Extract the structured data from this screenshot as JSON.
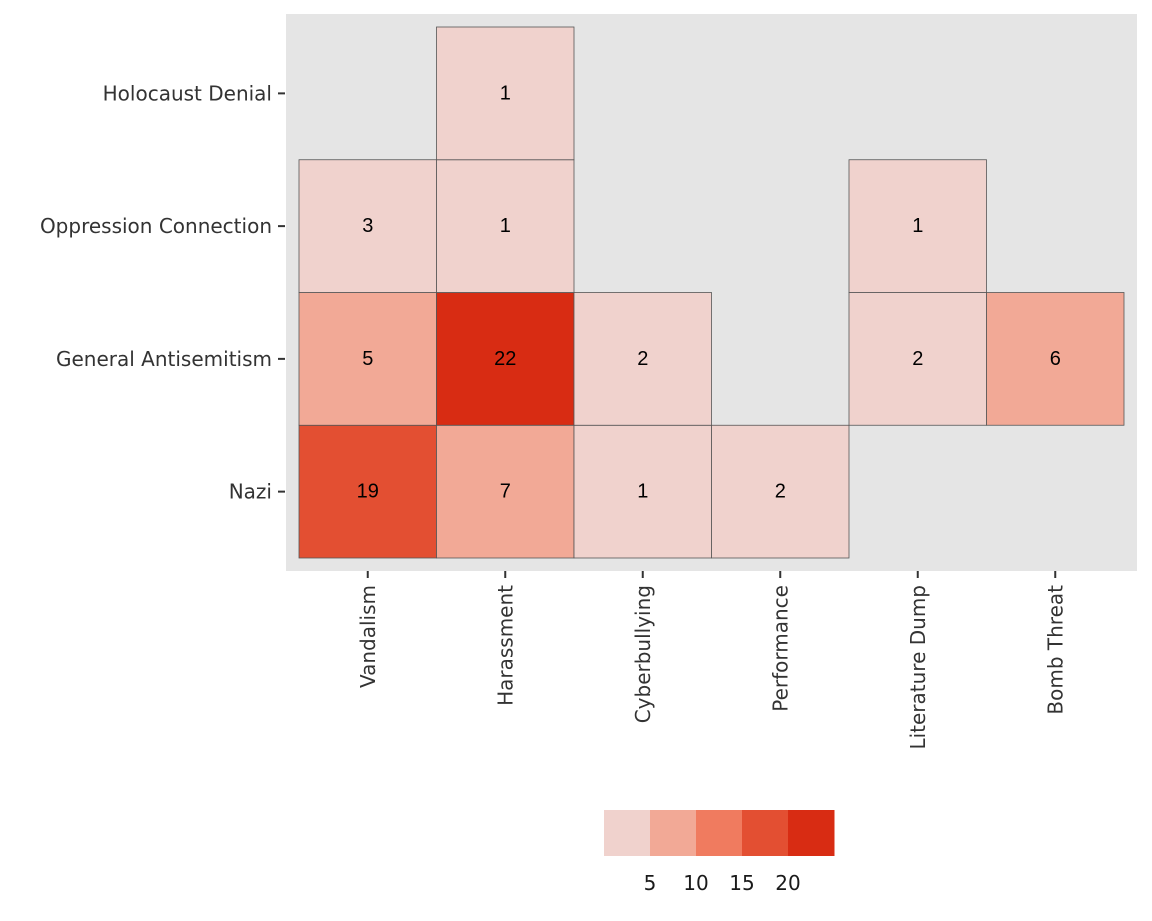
{
  "chart_data": {
    "type": "heatmap",
    "title": "",
    "xlabel": "",
    "ylabel": "",
    "x_categories": [
      "Vandalism",
      "Harassment",
      "Cyberbullying",
      "Performance",
      "Literature Dump",
      "Bomb Threat"
    ],
    "y_categories": [
      "Nazi",
      "General Antisemitism",
      "Oppression Connection",
      "Holocaust Denial"
    ],
    "cells": [
      {
        "x": "Vandalism",
        "y": "Nazi",
        "value": 19
      },
      {
        "x": "Harassment",
        "y": "Nazi",
        "value": 7
      },
      {
        "x": "Cyberbullying",
        "y": "Nazi",
        "value": 1
      },
      {
        "x": "Performance",
        "y": "Nazi",
        "value": 2
      },
      {
        "x": "Vandalism",
        "y": "General Antisemitism",
        "value": 5
      },
      {
        "x": "Harassment",
        "y": "General Antisemitism",
        "value": 22
      },
      {
        "x": "Cyberbullying",
        "y": "General Antisemitism",
        "value": 2
      },
      {
        "x": "Literature Dump",
        "y": "General Antisemitism",
        "value": 2
      },
      {
        "x": "Bomb Threat",
        "y": "General Antisemitism",
        "value": 6
      },
      {
        "x": "Vandalism",
        "y": "Oppression Connection",
        "value": 3
      },
      {
        "x": "Harassment",
        "y": "Oppression Connection",
        "value": 1
      },
      {
        "x": "Literature Dump",
        "y": "Oppression Connection",
        "value": 1
      },
      {
        "x": "Harassment",
        "y": "Holocaust Denial",
        "value": 1
      }
    ],
    "color_scale": {
      "type": "binned",
      "bin_edges": [
        0,
        5,
        10,
        15,
        20,
        25
      ],
      "colors": [
        "#f0d2cd",
        "#f2a996",
        "#f07b5f",
        "#e34f32",
        "#d82c13"
      ],
      "breaks": [
        "5",
        "10",
        "15",
        "20"
      ],
      "legend_position": "bottom"
    },
    "panel_background": "#e5e5e5",
    "cell_border": "#555555",
    "grid": false
  }
}
